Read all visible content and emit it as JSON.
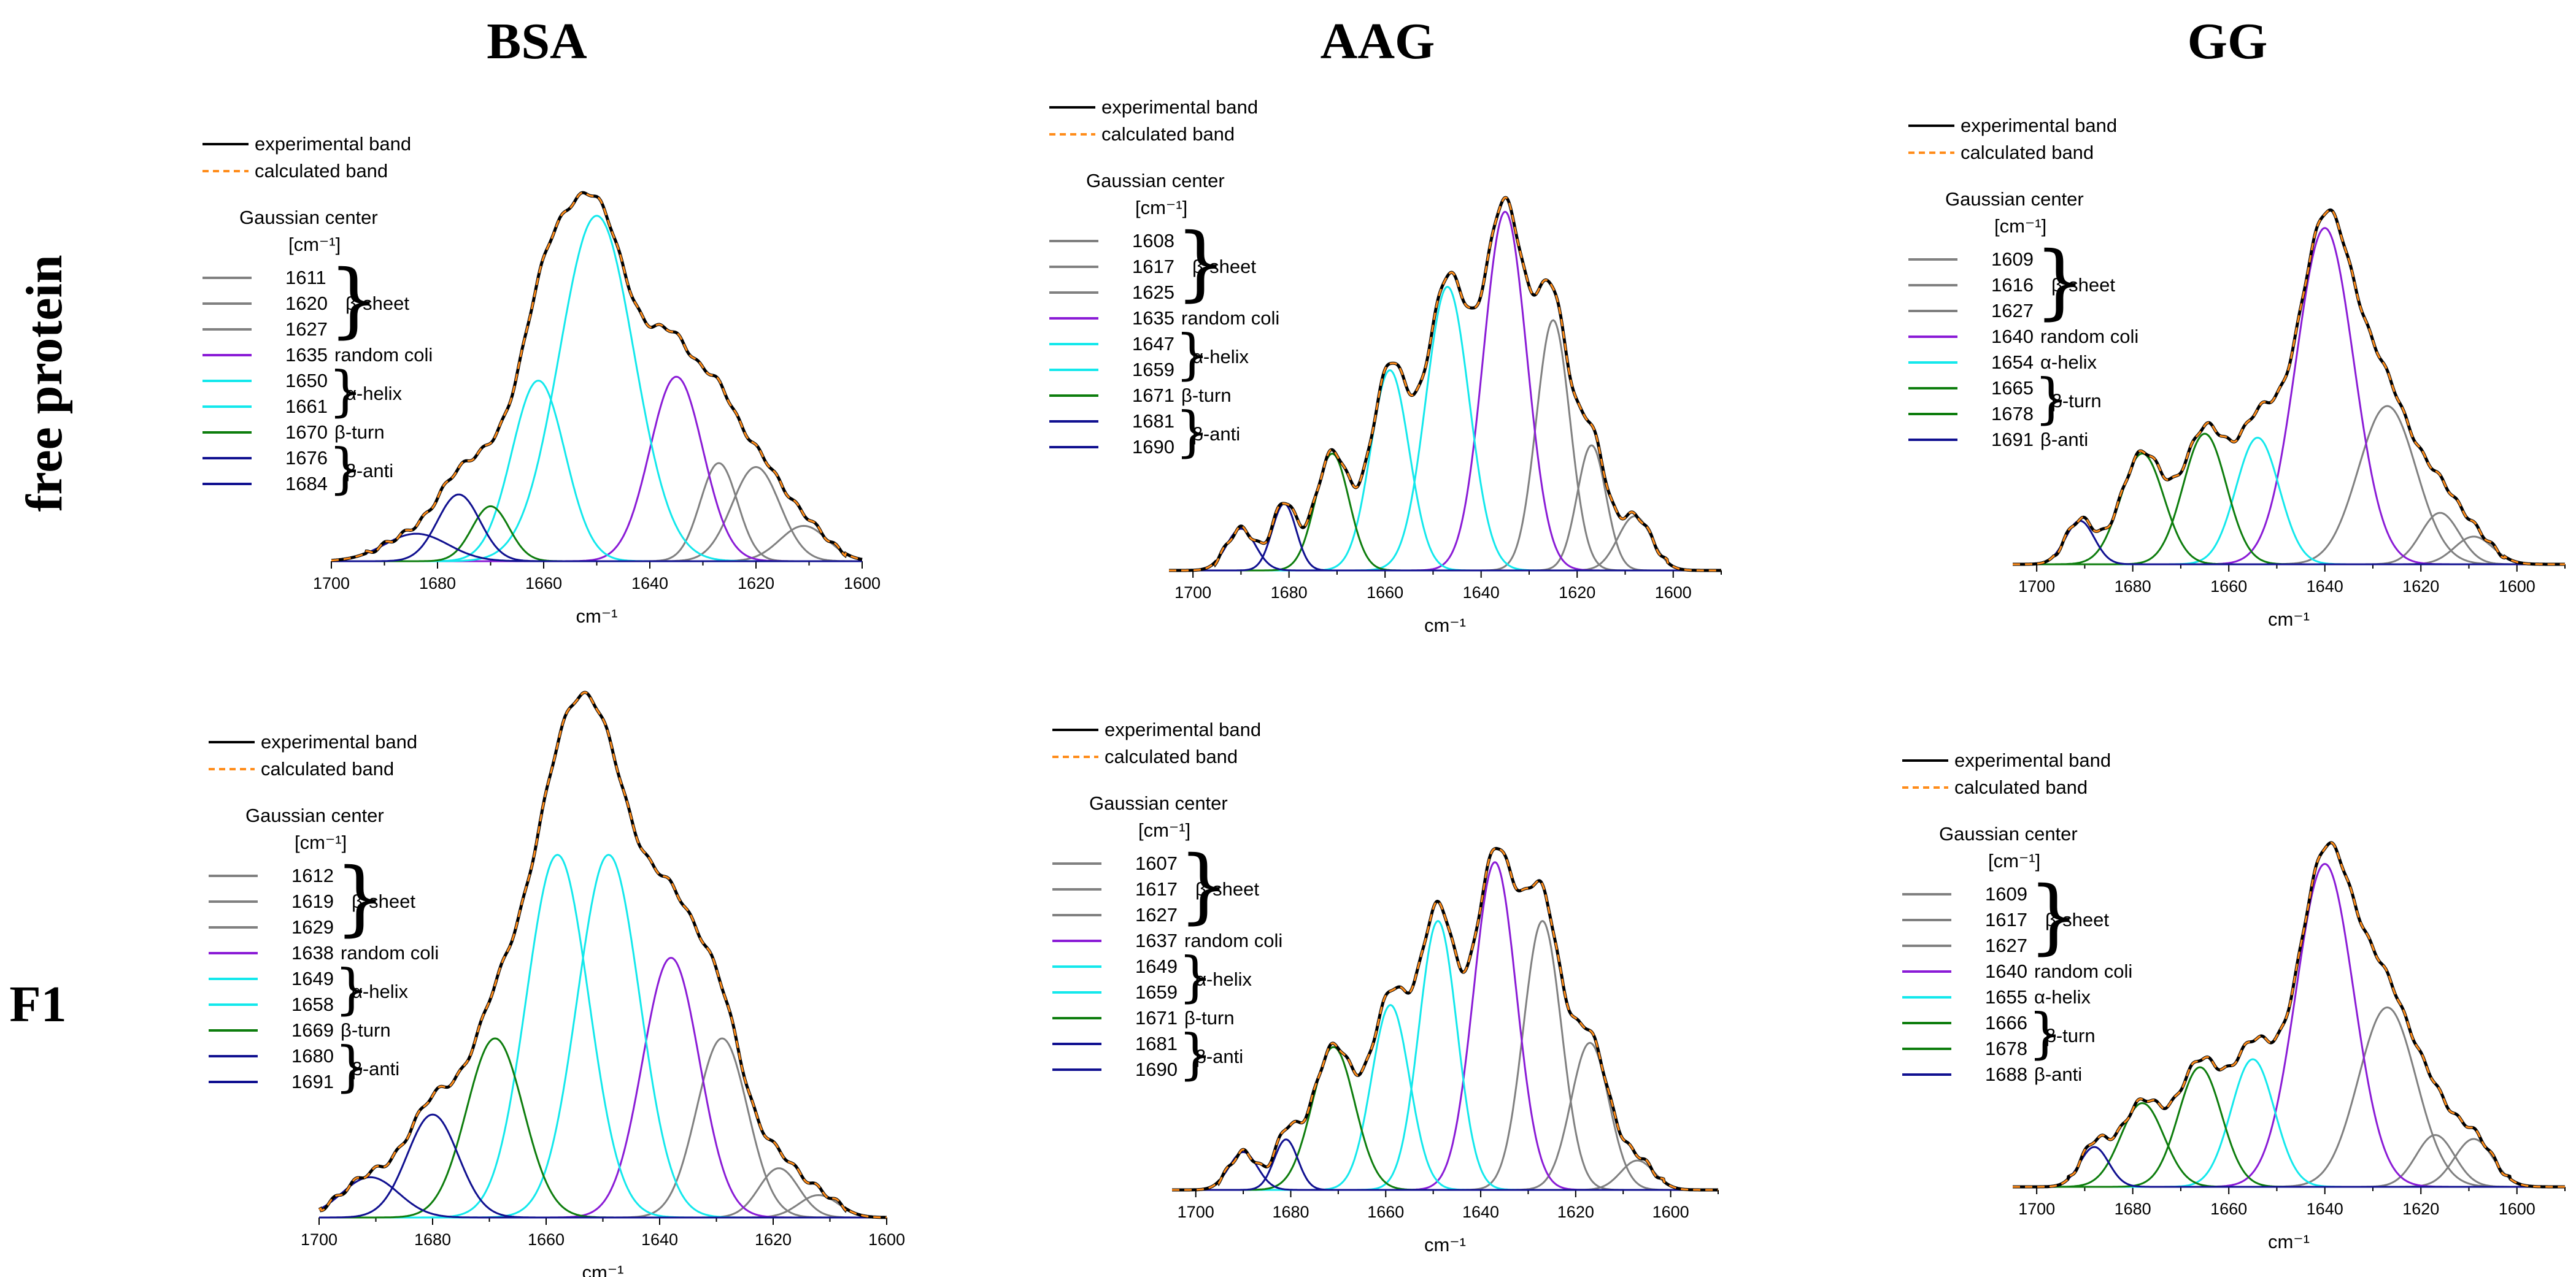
{
  "column_titles": [
    "BSA",
    "AAG",
    "GG"
  ],
  "row_titles": [
    "free protein",
    "F1"
  ],
  "legend": {
    "experimental": "experimental band",
    "calculated": "calculated band",
    "gaussian_title": "Gaussian center",
    "unit": "[cm⁻¹]"
  },
  "colors": {
    "experimental": "#000000",
    "calculated": "#ff8c1a",
    "beta_sheet": "#808080",
    "random_coil": "#8a1bd6",
    "alpha_helix": "#13e8ec",
    "beta_turn": "#0d7d0d",
    "beta_anti": "#101090"
  },
  "chart_data": [
    {
      "id": "BSA-free",
      "type": "line",
      "column": "BSA",
      "row": "free protein",
      "xlabel": "cm⁻¹",
      "xlim": [
        1700,
        1600
      ],
      "xticks": [
        1700,
        1680,
        1660,
        1640,
        1620,
        1600
      ],
      "ylim": [
        0,
        1
      ],
      "components": [
        {
          "center": 1611,
          "group": "beta_sheet",
          "label": "β-sheet",
          "height": 0.09,
          "sigma": 4.5
        },
        {
          "center": 1620,
          "group": "beta_sheet",
          "label": "β-sheet",
          "height": 0.24,
          "sigma": 4.5
        },
        {
          "center": 1627,
          "group": "beta_sheet",
          "label": "β-sheet",
          "height": 0.25,
          "sigma": 3.5
        },
        {
          "center": 1635,
          "group": "random_coil",
          "label": "random coli",
          "height": 0.47,
          "sigma": 5
        },
        {
          "center": 1650,
          "group": "alpha_helix",
          "label": "α-helix",
          "height": 0.88,
          "sigma": 7
        },
        {
          "center": 1661,
          "group": "alpha_helix",
          "label": "α-helix",
          "height": 0.46,
          "sigma": 5
        },
        {
          "center": 1670,
          "group": "beta_turn",
          "label": "β-turn",
          "height": 0.14,
          "sigma": 3.5
        },
        {
          "center": 1676,
          "group": "beta_anti",
          "label": "β-anti",
          "height": 0.17,
          "sigma": 4
        },
        {
          "center": 1684,
          "group": "beta_anti",
          "label": "β-anti",
          "height": 0.07,
          "sigma": 6
        }
      ],
      "envelope_peak": 1652
    },
    {
      "id": "AAG-free",
      "type": "line",
      "column": "AAG",
      "row": "free protein",
      "xlabel": "cm⁻¹",
      "xlim": [
        1705,
        1590
      ],
      "xticks": [
        1700,
        1680,
        1660,
        1640,
        1620,
        1600
      ],
      "ylim": [
        0,
        1
      ],
      "components": [
        {
          "center": 1608,
          "group": "beta_sheet",
          "label": "β-sheet",
          "height": 0.13,
          "sigma": 3.5
        },
        {
          "center": 1617,
          "group": "beta_sheet",
          "label": "β-sheet",
          "height": 0.3,
          "sigma": 3
        },
        {
          "center": 1625,
          "group": "beta_sheet",
          "label": "β-sheet",
          "height": 0.6,
          "sigma": 3.5
        },
        {
          "center": 1635,
          "group": "random_coil",
          "label": "random coli",
          "height": 0.86,
          "sigma": 4.5
        },
        {
          "center": 1647,
          "group": "alpha_helix",
          "label": "α-helix",
          "height": 0.68,
          "sigma": 4.5
        },
        {
          "center": 1659,
          "group": "alpha_helix",
          "label": "α-helix",
          "height": 0.48,
          "sigma": 4
        },
        {
          "center": 1671,
          "group": "beta_turn",
          "label": "β-turn",
          "height": 0.28,
          "sigma": 3.5
        },
        {
          "center": 1681,
          "group": "beta_anti",
          "label": "β-anti",
          "height": 0.16,
          "sigma": 2.5
        },
        {
          "center": 1690,
          "group": "beta_anti",
          "label": "β-anti",
          "height": 0.1,
          "sigma": 3
        }
      ],
      "envelope_peak": 1634
    },
    {
      "id": "GG-free",
      "type": "line",
      "column": "GG",
      "row": "free protein",
      "xlabel": "cm⁻¹",
      "xlim": [
        1705,
        1590
      ],
      "xticks": [
        1700,
        1680,
        1660,
        1640,
        1620,
        1600
      ],
      "ylim": [
        0,
        1
      ],
      "components": [
        {
          "center": 1609,
          "group": "beta_sheet",
          "label": "β-sheet",
          "height": 0.07,
          "sigma": 4
        },
        {
          "center": 1616,
          "group": "beta_sheet",
          "label": "β-sheet",
          "height": 0.13,
          "sigma": 4
        },
        {
          "center": 1627,
          "group": "beta_sheet",
          "label": "β-sheet",
          "height": 0.4,
          "sigma": 6
        },
        {
          "center": 1640,
          "group": "random_coil",
          "label": "random coli",
          "height": 0.85,
          "sigma": 6
        },
        {
          "center": 1654,
          "group": "alpha_helix",
          "label": "α-helix",
          "height": 0.32,
          "sigma": 4.5
        },
        {
          "center": 1665,
          "group": "beta_turn",
          "label": "β-turn",
          "height": 0.33,
          "sigma": 4.5
        },
        {
          "center": 1678,
          "group": "beta_turn",
          "label": "β-turn",
          "height": 0.28,
          "sigma": 4.5
        },
        {
          "center": 1691,
          "group": "beta_anti",
          "label": "β-anti",
          "height": 0.11,
          "sigma": 3
        }
      ],
      "envelope_peak": 1638
    },
    {
      "id": "BSA-F1",
      "type": "line",
      "column": "BSA",
      "row": "F1",
      "xlabel": "cm⁻¹",
      "xlim": [
        1700,
        1600
      ],
      "xticks": [
        1700,
        1680,
        1660,
        1640,
        1620,
        1600
      ],
      "ylim": [
        0,
        1
      ],
      "components": [
        {
          "center": 1612,
          "group": "beta_sheet",
          "label": "β-sheet",
          "height": 0.05,
          "sigma": 3.5
        },
        {
          "center": 1619,
          "group": "beta_sheet",
          "label": "β-sheet",
          "height": 0.11,
          "sigma": 3.5
        },
        {
          "center": 1629,
          "group": "beta_sheet",
          "label": "β-sheet",
          "height": 0.4,
          "sigma": 4.5
        },
        {
          "center": 1638,
          "group": "random_coil",
          "label": "random coli",
          "height": 0.58,
          "sigma": 5
        },
        {
          "center": 1649,
          "group": "alpha_helix",
          "label": "α-helix",
          "height": 0.81,
          "sigma": 5.5
        },
        {
          "center": 1658,
          "group": "alpha_helix",
          "label": "α-helix",
          "height": 0.81,
          "sigma": 5.5
        },
        {
          "center": 1669,
          "group": "beta_turn",
          "label": "β-turn",
          "height": 0.4,
          "sigma": 5
        },
        {
          "center": 1680,
          "group": "beta_anti",
          "label": "β-anti",
          "height": 0.23,
          "sigma": 4.5
        },
        {
          "center": 1691,
          "group": "beta_anti",
          "label": "β-anti",
          "height": 0.09,
          "sigma": 5
        }
      ],
      "envelope_peak": 1654
    },
    {
      "id": "AAG-F1",
      "type": "line",
      "column": "AAG",
      "row": "F1",
      "xlabel": "cm⁻¹",
      "xlim": [
        1705,
        1590
      ],
      "xticks": [
        1700,
        1680,
        1660,
        1640,
        1620,
        1600
      ],
      "ylim": [
        0,
        1
      ],
      "components": [
        {
          "center": 1607,
          "group": "beta_sheet",
          "label": "β-sheet",
          "height": 0.07,
          "sigma": 3.5
        },
        {
          "center": 1617,
          "group": "beta_sheet",
          "label": "β-sheet",
          "height": 0.35,
          "sigma": 4
        },
        {
          "center": 1627,
          "group": "beta_sheet",
          "label": "β-sheet",
          "height": 0.64,
          "sigma": 4
        },
        {
          "center": 1637,
          "group": "random_coil",
          "label": "random coli",
          "height": 0.78,
          "sigma": 4.5
        },
        {
          "center": 1649,
          "group": "alpha_helix",
          "label": "α-helix",
          "height": 0.64,
          "sigma": 4
        },
        {
          "center": 1659,
          "group": "alpha_helix",
          "label": "α-helix",
          "height": 0.44,
          "sigma": 4
        },
        {
          "center": 1671,
          "group": "beta_turn",
          "label": "β-turn",
          "height": 0.34,
          "sigma": 4.5
        },
        {
          "center": 1681,
          "group": "beta_anti",
          "label": "β-anti",
          "height": 0.12,
          "sigma": 2.5
        },
        {
          "center": 1690,
          "group": "beta_anti",
          "label": "β-anti",
          "height": 0.09,
          "sigma": 3
        }
      ],
      "envelope_peak": 1634
    },
    {
      "id": "GG-F1",
      "type": "line",
      "column": "GG",
      "row": "F1",
      "xlabel": "cm⁻¹",
      "xlim": [
        1705,
        1590
      ],
      "xticks": [
        1700,
        1680,
        1660,
        1640,
        1620,
        1600
      ],
      "ylim": [
        0,
        1
      ],
      "components": [
        {
          "center": 1609,
          "group": "beta_sheet",
          "label": "β-sheet",
          "height": 0.12,
          "sigma": 4
        },
        {
          "center": 1617,
          "group": "beta_sheet",
          "label": "β-sheet",
          "height": 0.13,
          "sigma": 4
        },
        {
          "center": 1627,
          "group": "beta_sheet",
          "label": "β-sheet",
          "height": 0.45,
          "sigma": 6
        },
        {
          "center": 1640,
          "group": "random_coil",
          "label": "random coli",
          "height": 0.81,
          "sigma": 6
        },
        {
          "center": 1655,
          "group": "alpha_helix",
          "label": "α-helix",
          "height": 0.32,
          "sigma": 4.5
        },
        {
          "center": 1666,
          "group": "beta_turn",
          "label": "β-turn",
          "height": 0.3,
          "sigma": 4.5
        },
        {
          "center": 1678,
          "group": "beta_turn",
          "label": "β-turn",
          "height": 0.21,
          "sigma": 4.5
        },
        {
          "center": 1688,
          "group": "beta_anti",
          "label": "β-anti",
          "height": 0.1,
          "sigma": 3
        }
      ],
      "envelope_peak": 1638
    }
  ]
}
